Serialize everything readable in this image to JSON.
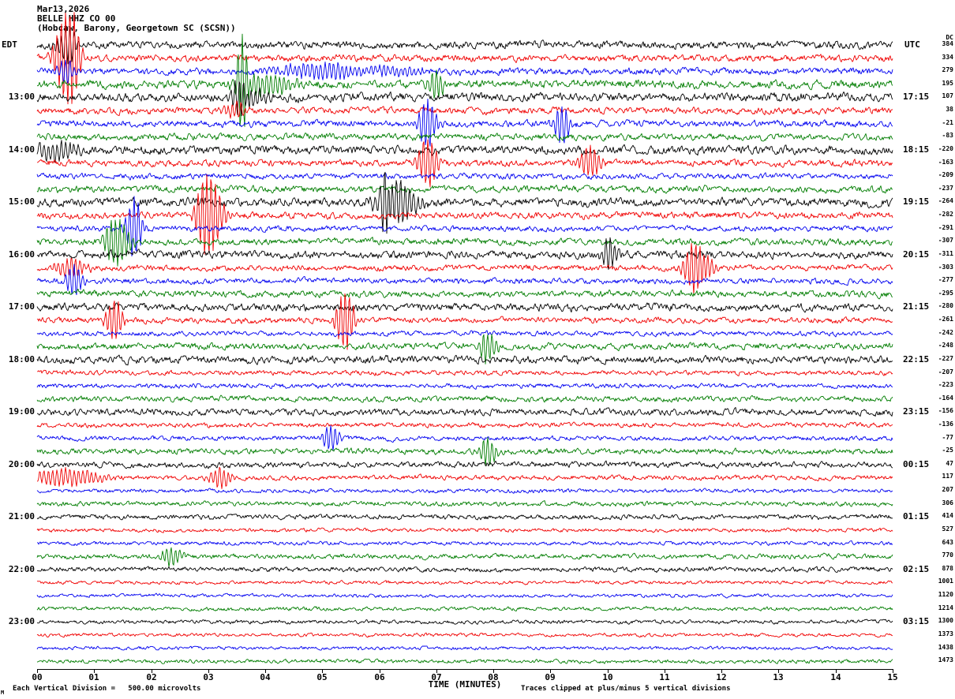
{
  "header": {
    "date": "Mar13,2026",
    "station": "BELLE HHZ CO 00",
    "location": "(Hobcaw, Barony, Georgetown SC (SCSN))"
  },
  "axes": {
    "left_tz": "EDT",
    "right_tz": "UTC",
    "dc_label": "DC",
    "x_title": "TIME (MINUTES)",
    "x_ticks": [
      "00",
      "01",
      "02",
      "03",
      "04",
      "05",
      "06",
      "07",
      "08",
      "09",
      "10",
      "11",
      "12",
      "13",
      "14",
      "15"
    ]
  },
  "footer": {
    "division_note": "Each Vertical Division =   500.00 microvolts",
    "clip_note": "Traces clipped at plus/minus 5 vertical divisions",
    "corner_mark": "M"
  },
  "chart_data": {
    "type": "line",
    "subtype": "helicorder-seismogram",
    "x_range_minutes": [
      0,
      15
    ],
    "minutes_per_line": 15,
    "clip_divisions": 5,
    "microvolts_per_division": 500.0,
    "trace_colors_cycle": [
      "#000000",
      "#f00000",
      "#0000f0",
      "#007d00"
    ],
    "rows": [
      {
        "edt": "",
        "utc": "",
        "dc": 384,
        "amp": 4.0,
        "events": [
          [
            0.5,
            27,
            0.25
          ],
          [
            0.38,
            12,
            0.15
          ]
        ]
      },
      {
        "edt": "",
        "utc": "",
        "dc": 334,
        "amp": 3.5,
        "events": [
          [
            0.5,
            52,
            0.28
          ],
          [
            0.65,
            24,
            0.18
          ]
        ]
      },
      {
        "edt": "",
        "utc": "",
        "dc": 279,
        "amp": 3.5,
        "events": [
          [
            0.5,
            16,
            0.2
          ],
          [
            5.2,
            12,
            1.3
          ],
          [
            6.0,
            10,
            1.0
          ]
        ]
      },
      {
        "edt": "",
        "utc": "",
        "dc": 195,
        "amp": 4.5,
        "events": [
          [
            3.6,
            70,
            0.15
          ],
          [
            3.95,
            14,
            0.8
          ],
          [
            7.0,
            18,
            0.2
          ]
        ]
      },
      {
        "edt": "13:00",
        "utc": "17:15",
        "dc": 107,
        "amp": 4.5,
        "events": [
          [
            3.55,
            30,
            0.18
          ],
          [
            3.75,
            12,
            0.4
          ]
        ]
      },
      {
        "edt": "",
        "utc": "",
        "dc": 38,
        "amp": 3.5,
        "events": [
          [
            3.5,
            9,
            0.3
          ]
        ]
      },
      {
        "edt": "",
        "utc": "",
        "dc": -21,
        "amp": 3.5,
        "events": [
          [
            6.85,
            32,
            0.22
          ],
          [
            9.2,
            26,
            0.2
          ]
        ]
      },
      {
        "edt": "",
        "utc": "",
        "dc": -83,
        "amp": 3.5,
        "events": []
      },
      {
        "edt": "14:00",
        "utc": "18:15",
        "dc": -220,
        "amp": 4.5,
        "events": [
          [
            0.35,
            13,
            0.5
          ]
        ]
      },
      {
        "edt": "",
        "utc": "",
        "dc": -163,
        "amp": 3.5,
        "events": [
          [
            6.85,
            30,
            0.25
          ],
          [
            9.7,
            20,
            0.25
          ]
        ]
      },
      {
        "edt": "",
        "utc": "",
        "dc": -209,
        "amp": 3.0,
        "events": []
      },
      {
        "edt": "",
        "utc": "",
        "dc": -237,
        "amp": 3.5,
        "events": []
      },
      {
        "edt": "15:00",
        "utc": "19:15",
        "dc": -264,
        "amp": 4.5,
        "events": [
          [
            6.1,
            55,
            0.12
          ],
          [
            6.3,
            28,
            0.5
          ]
        ]
      },
      {
        "edt": "",
        "utc": "",
        "dc": -282,
        "amp": 3.5,
        "events": [
          [
            3.05,
            42,
            0.3
          ],
          [
            2.9,
            20,
            0.2
          ]
        ]
      },
      {
        "edt": "",
        "utc": "",
        "dc": -291,
        "amp": 3.0,
        "events": [
          [
            1.7,
            40,
            0.2
          ]
        ]
      },
      {
        "edt": "",
        "utc": "",
        "dc": -307,
        "amp": 3.5,
        "events": [
          [
            1.45,
            22,
            0.3
          ],
          [
            1.3,
            14,
            0.2
          ]
        ]
      },
      {
        "edt": "16:00",
        "utc": "20:15",
        "dc": -311,
        "amp": 4.0,
        "events": [
          [
            10.05,
            20,
            0.2
          ]
        ]
      },
      {
        "edt": "",
        "utc": "",
        "dc": -303,
        "amp": 3.0,
        "events": [
          [
            11.55,
            34,
            0.3
          ],
          [
            11.75,
            20,
            0.2
          ],
          [
            0.6,
            12,
            0.4
          ]
        ]
      },
      {
        "edt": "",
        "utc": "",
        "dc": -277,
        "amp": 3.0,
        "events": [
          [
            0.65,
            20,
            0.2
          ]
        ]
      },
      {
        "edt": "",
        "utc": "",
        "dc": -295,
        "amp": 3.5,
        "events": []
      },
      {
        "edt": "17:00",
        "utc": "21:15",
        "dc": -280,
        "amp": 4.0,
        "events": []
      },
      {
        "edt": "",
        "utc": "",
        "dc": -261,
        "amp": 3.0,
        "events": [
          [
            1.35,
            28,
            0.2
          ],
          [
            5.4,
            38,
            0.22
          ]
        ]
      },
      {
        "edt": "",
        "utc": "",
        "dc": -242,
        "amp": 2.5,
        "events": []
      },
      {
        "edt": "",
        "utc": "",
        "dc": -248,
        "amp": 3.5,
        "events": [
          [
            7.9,
            20,
            0.2
          ]
        ]
      },
      {
        "edt": "18:00",
        "utc": "22:15",
        "dc": -227,
        "amp": 4.0,
        "events": []
      },
      {
        "edt": "",
        "utc": "",
        "dc": -207,
        "amp": 2.5,
        "events": []
      },
      {
        "edt": "",
        "utc": "",
        "dc": -223,
        "amp": 2.5,
        "events": []
      },
      {
        "edt": "",
        "utc": "",
        "dc": -164,
        "amp": 3.0,
        "events": []
      },
      {
        "edt": "19:00",
        "utc": "23:15",
        "dc": -156,
        "amp": 3.5,
        "events": []
      },
      {
        "edt": "",
        "utc": "",
        "dc": -136,
        "amp": 2.5,
        "events": []
      },
      {
        "edt": "",
        "utc": "",
        "dc": -77,
        "amp": 2.5,
        "events": [
          [
            5.15,
            17,
            0.2
          ]
        ]
      },
      {
        "edt": "",
        "utc": "",
        "dc": -25,
        "amp": 3.0,
        "events": [
          [
            7.9,
            18,
            0.2
          ]
        ]
      },
      {
        "edt": "20:00",
        "utc": "00:15",
        "dc": 47,
        "amp": 3.0,
        "events": []
      },
      {
        "edt": "",
        "utc": "",
        "dc": 117,
        "amp": 2.5,
        "events": [
          [
            0.5,
            11,
            0.9
          ],
          [
            3.2,
            14,
            0.25
          ]
        ]
      },
      {
        "edt": "",
        "utc": "",
        "dc": 207,
        "amp": 2.0,
        "events": []
      },
      {
        "edt": "",
        "utc": "",
        "dc": 306,
        "amp": 2.5,
        "events": []
      },
      {
        "edt": "21:00",
        "utc": "01:15",
        "dc": 414,
        "amp": 2.5,
        "events": []
      },
      {
        "edt": "",
        "utc": "",
        "dc": 527,
        "amp": 2.0,
        "events": []
      },
      {
        "edt": "",
        "utc": "",
        "dc": 643,
        "amp": 2.0,
        "events": []
      },
      {
        "edt": "",
        "utc": "",
        "dc": 770,
        "amp": 2.5,
        "events": [
          [
            2.35,
            12,
            0.25
          ]
        ]
      },
      {
        "edt": "22:00",
        "utc": "02:15",
        "dc": 878,
        "amp": 2.5,
        "events": []
      },
      {
        "edt": "",
        "utc": "",
        "dc": 1001,
        "amp": 1.8,
        "events": []
      },
      {
        "edt": "",
        "utc": "",
        "dc": 1120,
        "amp": 1.8,
        "events": []
      },
      {
        "edt": "",
        "utc": "",
        "dc": 1214,
        "amp": 2.0,
        "events": []
      },
      {
        "edt": "23:00",
        "utc": "03:15",
        "dc": 1300,
        "amp": 2.0,
        "events": []
      },
      {
        "edt": "",
        "utc": "",
        "dc": 1373,
        "amp": 1.8,
        "events": []
      },
      {
        "edt": "",
        "utc": "",
        "dc": 1438,
        "amp": 1.8,
        "events": []
      },
      {
        "edt": "",
        "utc": "",
        "dc": 1473,
        "amp": 2.0,
        "events": []
      }
    ]
  }
}
